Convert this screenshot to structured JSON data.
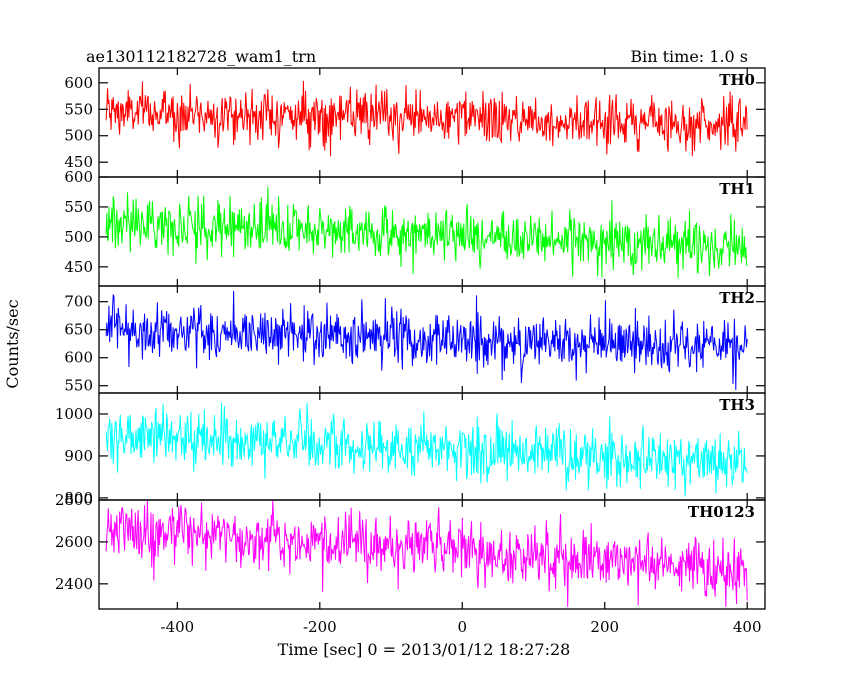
{
  "chart_data": {
    "type": "line",
    "title_left": "ae130112182728_wam1_trn",
    "title_right": "Bin time: 1.0 s",
    "xlabel": "Time [sec] 0 = 2013/01/12 18:27:28",
    "ylabel": "Counts/sec",
    "xlim": [
      -510,
      425
    ],
    "x_ticks": [
      -400,
      -200,
      0,
      200,
      400
    ],
    "x_start": -500,
    "x_end": 400,
    "bin_time": 1.0,
    "grid": false,
    "panels": [
      {
        "name": "TH0",
        "color": "#ff0000",
        "ylim": [
          422,
          628
        ],
        "y_ticks": [
          450,
          500,
          550,
          600
        ],
        "y_tick_labels": [
          "450",
          "500",
          "550",
          "600"
        ],
        "mean_start": 545,
        "mean_end": 522,
        "noise_sigma": 24,
        "clip": [
          425,
          625
        ]
      },
      {
        "name": "TH1",
        "color": "#00ff00",
        "ylim": [
          418,
          600
        ],
        "y_ticks": [
          450,
          500,
          550,
          600
        ],
        "y_tick_labels": [
          "450",
          "500",
          "550",
          "600"
        ],
        "mean_start": 525,
        "mean_end": 483,
        "noise_sigma": 22,
        "clip": [
          420,
          598
        ]
      },
      {
        "name": "TH2",
        "color": "#0000ff",
        "ylim": [
          537,
          728
        ],
        "y_ticks": [
          550,
          600,
          650,
          700
        ],
        "y_tick_labels": [
          "550",
          "600",
          "650",
          "700"
        ],
        "mean_start": 652,
        "mean_end": 615,
        "noise_sigma": 25,
        "clip": [
          540,
          726
        ]
      },
      {
        "name": "TH3",
        "color": "#00ffff",
        "ylim": [
          795,
          1050
        ],
        "y_ticks": [
          800,
          900,
          1000
        ],
        "y_tick_labels": [
          "800",
          "900",
          "1000"
        ],
        "mean_start": 950,
        "mean_end": 885,
        "noise_sigma": 33,
        "clip": [
          797,
          1048
        ]
      },
      {
        "name": "TH0123",
        "color": "#ff00ff",
        "ylim": [
          2280,
          2800
        ],
        "y_ticks": [
          2400,
          2600,
          2800
        ],
        "y_tick_labels": [
          "2400",
          "2600",
          "2800"
        ],
        "mean_start": 2665,
        "mean_end": 2470,
        "noise_sigma": 70,
        "clip": [
          2290,
          2798
        ]
      }
    ]
  }
}
